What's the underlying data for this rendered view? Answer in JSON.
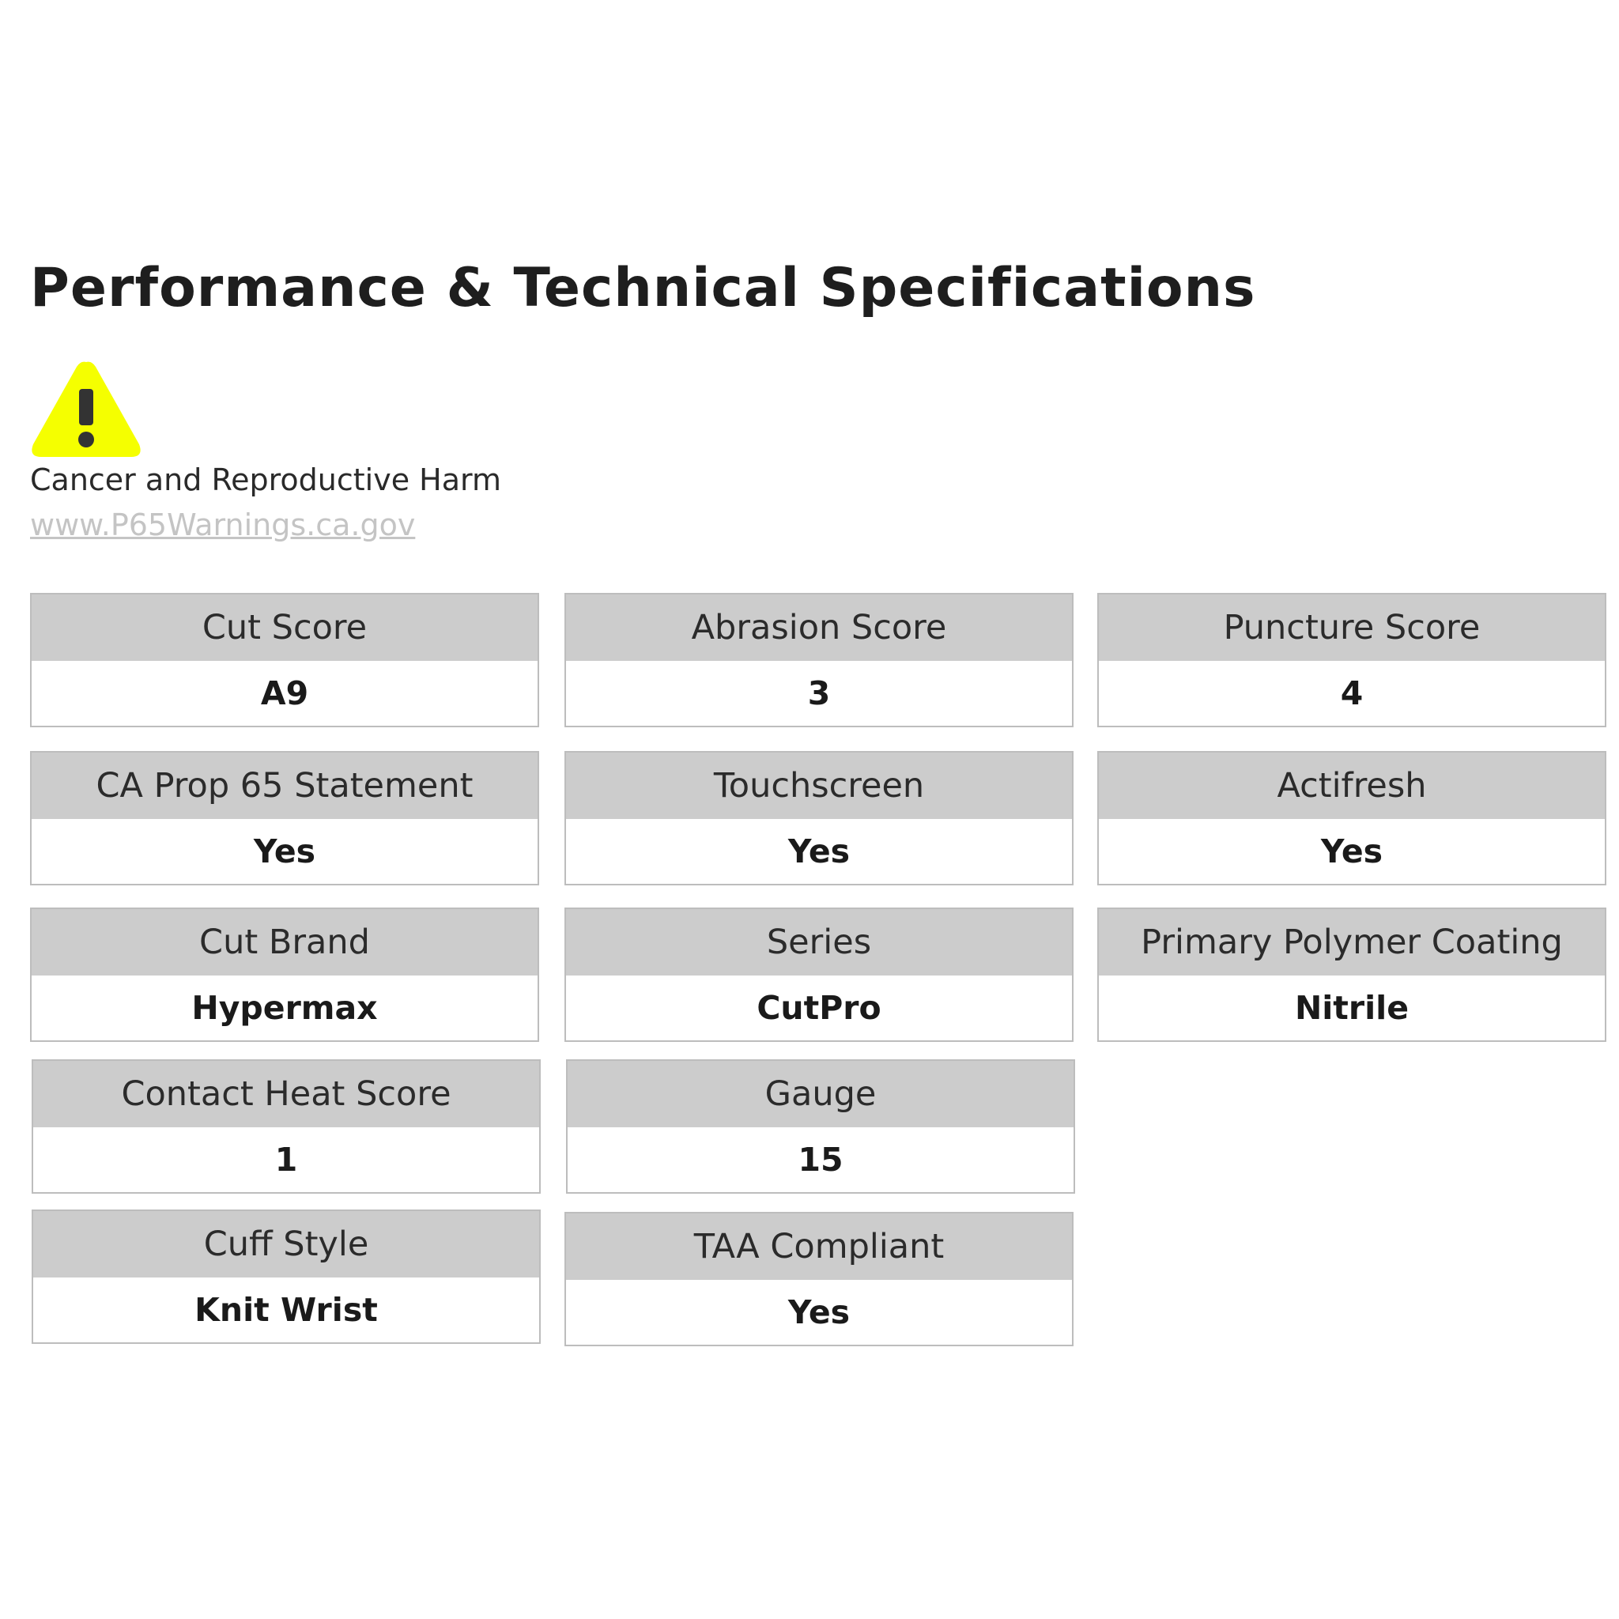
{
  "title": "Performance & Technical Specifications",
  "warning": {
    "icon": "warning-triangle-icon",
    "icon_color": "#f5ff00",
    "text": "Cancer and Reproductive Harm",
    "link": "www.P65Warnings.ca.gov"
  },
  "specs": [
    {
      "label": "Cut Score",
      "value": "A9"
    },
    {
      "label": "Abrasion Score",
      "value": "3"
    },
    {
      "label": "Puncture Score",
      "value": "4"
    },
    {
      "label": "CA Prop 65 Statement",
      "value": "Yes"
    },
    {
      "label": "Touchscreen",
      "value": "Yes"
    },
    {
      "label": "Actifresh",
      "value": "Yes"
    },
    {
      "label": "Cut Brand",
      "value": "Hypermax"
    },
    {
      "label": "Series",
      "value": "CutPro"
    },
    {
      "label": "Primary Polymer Coating",
      "value": "Nitrile"
    },
    {
      "label": "Contact Heat Score",
      "value": "1"
    },
    {
      "label": "Gauge",
      "value": "15"
    },
    {
      "label": "Cuff Style",
      "value": "Knit Wrist"
    },
    {
      "label": "TAA Compliant",
      "value": "Yes"
    }
  ]
}
